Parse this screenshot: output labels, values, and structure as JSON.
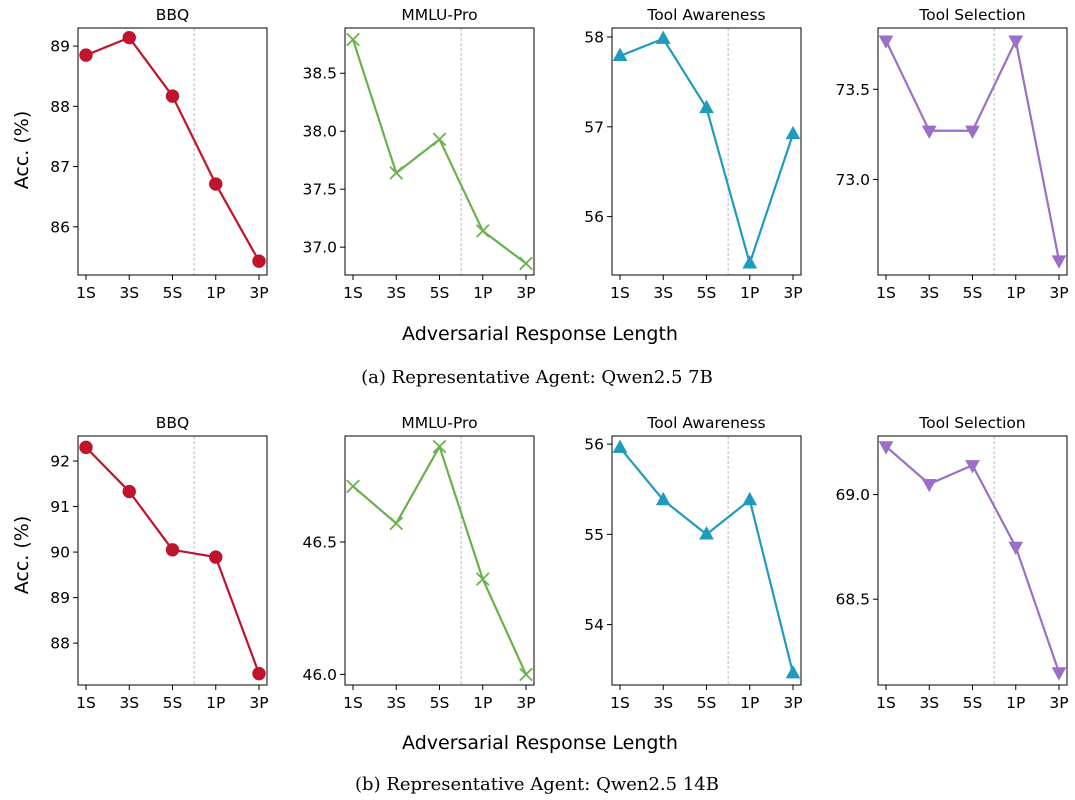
{
  "figure_rows": [
    {
      "caption": "(a) Representative Agent: Qwen2.5 7B",
      "ylabel": "Acc. (%)",
      "xlabel": "Adversarial Response Length"
    },
    {
      "caption": "(b) Representative Agent: Qwen2.5 14B",
      "ylabel": "Acc. (%)",
      "xlabel": "Adversarial Response Length"
    }
  ],
  "colors": {
    "BBQ": "#c0132d",
    "MMLU-Pro": "#6ab04c",
    "Tool Awareness": "#1f9bbd",
    "Tool Selection": "#9b6fc8",
    "separator": "#b0b0b0"
  },
  "markers": {
    "BBQ": "circle",
    "MMLU-Pro": "x",
    "Tool Awareness": "triangle-up",
    "Tool Selection": "triangle-down"
  },
  "chart_data": [
    {
      "type": "line",
      "row": 0,
      "title": "BBQ",
      "ylabel": "Acc. (%)",
      "xlabel": "",
      "categories": [
        "1S",
        "3S",
        "5S",
        "1P",
        "3P"
      ],
      "values": [
        88.85,
        89.14,
        88.17,
        86.71,
        85.43
      ],
      "ylim": [
        85.2,
        89.3
      ],
      "yticks": [
        86,
        87,
        88,
        89
      ],
      "tick_decimals": 0,
      "separator_after_index": 2,
      "grid": false
    },
    {
      "type": "line",
      "row": 0,
      "title": "MMLU-Pro",
      "ylabel": "",
      "xlabel": "",
      "categories": [
        "1S",
        "3S",
        "5S",
        "1P",
        "3P"
      ],
      "values": [
        38.79,
        37.64,
        37.93,
        37.14,
        36.86
      ],
      "ylim": [
        36.76,
        38.89
      ],
      "yticks": [
        37.0,
        37.5,
        38.0,
        38.5
      ],
      "tick_decimals": 1,
      "separator_after_index": 2,
      "grid": false
    },
    {
      "type": "line",
      "row": 0,
      "title": "Tool Awareness",
      "ylabel": "",
      "xlabel": "",
      "categories": [
        "1S",
        "3S",
        "5S",
        "1P",
        "3P"
      ],
      "values": [
        57.79,
        57.98,
        57.21,
        55.48,
        56.92
      ],
      "ylim": [
        55.35,
        58.1
      ],
      "yticks": [
        56,
        57,
        58
      ],
      "tick_decimals": 0,
      "separator_after_index": 2,
      "grid": false
    },
    {
      "type": "line",
      "row": 0,
      "title": "Tool Selection",
      "ylabel": "",
      "xlabel": "",
      "categories": [
        "1S",
        "3S",
        "5S",
        "1P",
        "3P"
      ],
      "values": [
        73.77,
        73.27,
        73.27,
        73.77,
        72.55
      ],
      "ylim": [
        72.47,
        73.84
      ],
      "yticks": [
        73.0,
        73.5
      ],
      "tick_decimals": 1,
      "separator_after_index": 2,
      "grid": false
    },
    {
      "type": "line",
      "row": 1,
      "title": "BBQ",
      "ylabel": "Acc. (%)",
      "xlabel": "",
      "categories": [
        "1S",
        "3S",
        "5S",
        "1P",
        "3P"
      ],
      "values": [
        92.3,
        91.33,
        90.05,
        89.89,
        87.33
      ],
      "ylim": [
        87.08,
        92.55
      ],
      "yticks": [
        88,
        89,
        90,
        91,
        92
      ],
      "tick_decimals": 0,
      "separator_after_index": 2,
      "grid": false
    },
    {
      "type": "line",
      "row": 1,
      "title": "MMLU-Pro",
      "ylabel": "",
      "xlabel": "",
      "categories": [
        "1S",
        "3S",
        "5S",
        "1P",
        "3P"
      ],
      "values": [
        46.71,
        46.57,
        46.86,
        46.36,
        46.0
      ],
      "ylim": [
        45.96,
        46.9
      ],
      "yticks": [
        46.0,
        46.5
      ],
      "tick_decimals": 1,
      "separator_after_index": 2,
      "grid": false
    },
    {
      "type": "line",
      "row": 1,
      "title": "Tool Awareness",
      "ylabel": "",
      "xlabel": "",
      "categories": [
        "1S",
        "3S",
        "5S",
        "1P",
        "3P"
      ],
      "values": [
        55.96,
        55.38,
        55.0,
        55.38,
        53.46
      ],
      "ylim": [
        53.33,
        56.09
      ],
      "yticks": [
        54,
        55,
        56
      ],
      "tick_decimals": 0,
      "separator_after_index": 2,
      "grid": false
    },
    {
      "type": "line",
      "row": 1,
      "title": "Tool Selection",
      "ylabel": "",
      "xlabel": "",
      "categories": [
        "1S",
        "3S",
        "5S",
        "1P",
        "3P"
      ],
      "values": [
        69.23,
        69.05,
        69.14,
        68.75,
        68.15
      ],
      "ylim": [
        68.09,
        69.28
      ],
      "yticks": [
        68.5,
        69.0
      ],
      "tick_decimals": 1,
      "separator_after_index": 2,
      "grid": false
    }
  ]
}
